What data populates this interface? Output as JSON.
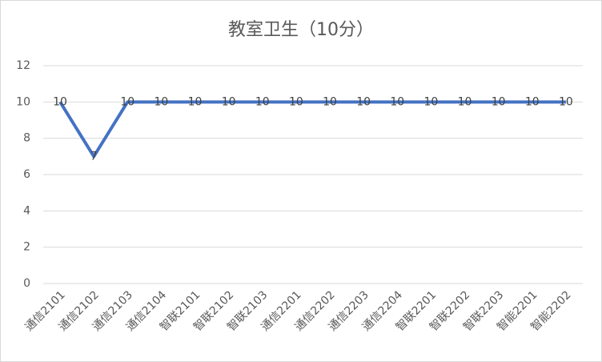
{
  "chart_data": {
    "type": "line",
    "title": "教室卫生（10分）",
    "categories": [
      "通信2101",
      "通信2102",
      "通信2103",
      "通信2104",
      "智联2101",
      "智联2102",
      "智联2103",
      "通信2201",
      "通信2202",
      "通信2203",
      "通信2204",
      "智联2201",
      "智联2202",
      "智联2203",
      "智能2201",
      "智能2202"
    ],
    "values": [
      10,
      7,
      10,
      10,
      10,
      10,
      10,
      10,
      10,
      10,
      10,
      10,
      10,
      10,
      10,
      10
    ],
    "color": "#4472c4",
    "ylim": [
      0,
      12
    ],
    "yticks": [
      0,
      2,
      4,
      6,
      8,
      10,
      12
    ],
    "grid": true,
    "data_labels": true
  }
}
